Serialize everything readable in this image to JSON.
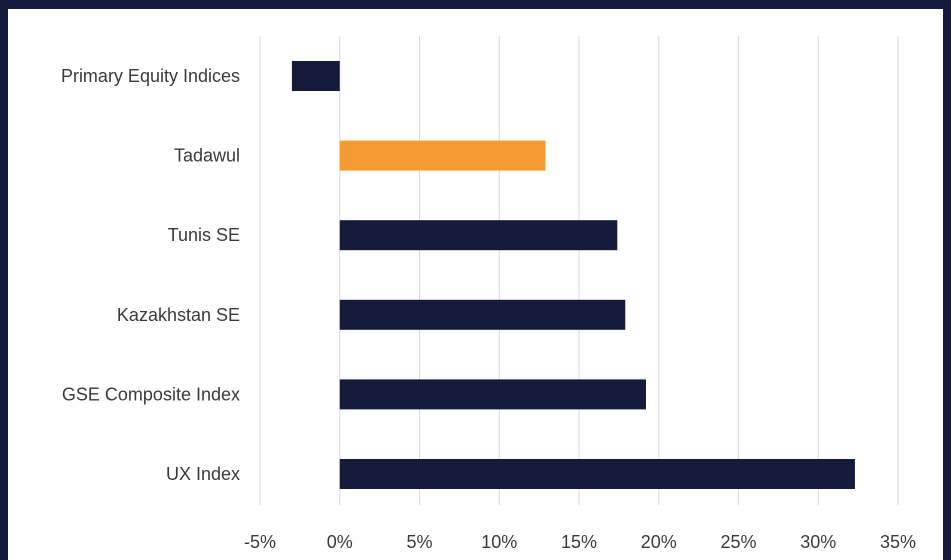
{
  "chart_data": {
    "type": "bar",
    "orientation": "horizontal",
    "categories": [
      "Primary Equity Indices",
      "Tadawul",
      "Tunis SE",
      "Kazakhstan SE",
      "GSE Composite Index",
      "UX Index"
    ],
    "values": [
      -3.0,
      12.9,
      17.4,
      17.9,
      19.2,
      32.3
    ],
    "value_unit": "%",
    "xlim": [
      -5,
      35
    ],
    "xticks": [
      -5,
      0,
      5,
      10,
      15,
      20,
      25,
      30,
      35
    ],
    "xtick_labels": [
      "-5%",
      "0%",
      "5%",
      "10%",
      "15%",
      "20%",
      "25%",
      "30%",
      "35%"
    ],
    "grid": "vertical",
    "title": "",
    "xlabel": "",
    "ylabel": "",
    "colors": {
      "default_bar": "#141b3d",
      "highlight_bar": "#f59b32",
      "gridline": "#d9d9d9",
      "frame": "#141b3d"
    },
    "highlight_category": "Tadawul"
  }
}
